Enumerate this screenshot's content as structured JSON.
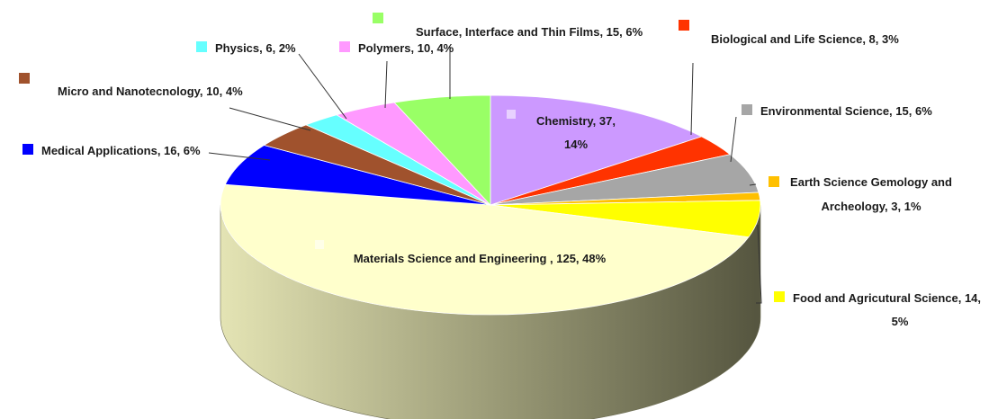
{
  "chart_data": {
    "type": "pie",
    "title": "",
    "style": "3d-pie",
    "slices": [
      {
        "name": "Chemistry",
        "count": 37,
        "percent": "14%",
        "label_lines": [
          "Chemistry, 37,",
          "14%"
        ],
        "color": "#CC99FF"
      },
      {
        "name": "Biological and Life Science",
        "count": 8,
        "percent": "3%",
        "label_lines": [
          "Biological and Life Science, 8, 3%"
        ],
        "color": "#FF3300"
      },
      {
        "name": "Environmental Science",
        "count": 15,
        "percent": "6%",
        "label_lines": [
          "Environmental Science, 15, 6%"
        ],
        "color": "#A6A6A6"
      },
      {
        "name": "Earth Science Gemology and Archeology",
        "count": 3,
        "percent": "1%",
        "label_lines": [
          "Earth Science Gemology and",
          "Archeology, 3, 1%"
        ],
        "color": "#FFC000"
      },
      {
        "name": "Food and Agricutural Science",
        "count": 14,
        "percent": "5%",
        "label_lines": [
          "Food and Agricutural Science, 14,",
          "5%"
        ],
        "color": "#FFFF00"
      },
      {
        "name": "Materials Science and Engineering",
        "count": 125,
        "percent": "48%",
        "label_lines": [
          "Materials Science and Engineering , 125, 48%"
        ],
        "color": "#FFFFCC"
      },
      {
        "name": "Medical Applications",
        "count": 16,
        "percent": "6%",
        "label_lines": [
          "Medical Applications, 16, 6%"
        ],
        "color": "#0000FF"
      },
      {
        "name": "Micro and Nanotecnology",
        "count": 10,
        "percent": "4%",
        "label_lines": [
          "Micro and Nanotecnology, 10, 4%"
        ],
        "color": "#A0522D"
      },
      {
        "name": "Physics",
        "count": 6,
        "percent": "2%",
        "label_lines": [
          "Physics, 6, 2%"
        ],
        "color": "#66FFFF"
      },
      {
        "name": "Polymers",
        "count": 10,
        "percent": "4%",
        "label_lines": [
          "Polymers, 10, 4%"
        ],
        "color": "#FF99FF"
      },
      {
        "name": "Surface, Interface and Thin Films",
        "count": 15,
        "percent": "6%",
        "label_lines": [
          "Surface, Interface and Thin Films, 15, 6%"
        ],
        "color": "#99FF66"
      }
    ]
  }
}
